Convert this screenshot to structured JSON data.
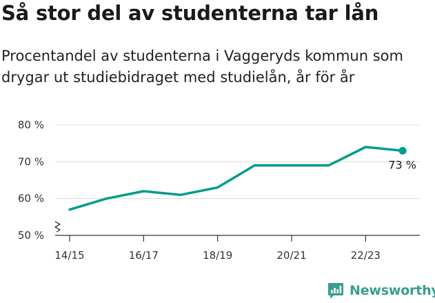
{
  "title": "Så stor del av studenterna tar lån",
  "subtitle": "Procentandel av studenterna i Vaggeryds kommun som drygar ut studiebidraget med studielån, år för år",
  "brand": {
    "name": "Newsworthy"
  },
  "colors": {
    "line": "#009c8c",
    "grid": "#d9d9d9",
    "axis": "#333333",
    "brand": "#3a9d8e"
  },
  "chart_data": {
    "type": "line",
    "x": [
      "14/15",
      "15/16",
      "16/17",
      "17/18",
      "18/19",
      "19/20",
      "20/21",
      "21/22",
      "22/23",
      "23/24"
    ],
    "x_tick_labels": [
      "14/15",
      "16/17",
      "18/19",
      "20/21",
      "22/23"
    ],
    "series": [
      {
        "values": [
          57,
          60,
          62,
          61,
          63,
          69,
          69,
          69,
          74,
          73
        ]
      }
    ],
    "y_ticks": [
      50,
      60,
      70,
      80
    ],
    "y_tick_labels": [
      "50 %",
      "60 %",
      "70 %",
      "80 %"
    ],
    "ylim": [
      50,
      80
    ],
    "y_axis_break": true,
    "grid": true,
    "last_point_label": "73 %"
  }
}
